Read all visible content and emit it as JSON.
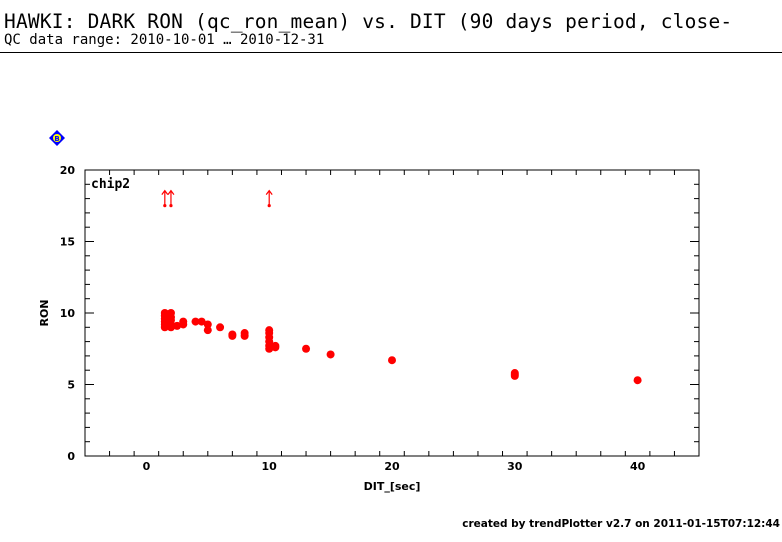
{
  "header": {
    "title": "HAWKI: DARK RON (qc_ron_mean) vs. DIT (90 days period, close-",
    "subtitle": "QC data range: 2010-10-01 … 2010-12-31"
  },
  "footer": {
    "text": "created by trendPlotter v2.7 on 2011-01-15T07:12:44"
  },
  "colors": {
    "data": "#ff0000",
    "marker_blue": "#0000ff",
    "marker_yellow": "#ffff00",
    "axis": "#000000"
  },
  "marker_icon": {
    "name": "blue-diamond-icon",
    "letter": "B"
  },
  "chart_data": {
    "type": "scatter",
    "panel_label": "chip2",
    "xlabel": "DIT_[sec]",
    "ylabel": "RON",
    "xlim": [
      -5,
      45
    ],
    "ylim": [
      0,
      20
    ],
    "xticks": [
      0,
      10,
      20,
      30,
      40
    ],
    "yticks": [
      0,
      5,
      10,
      15,
      20
    ],
    "series": [
      {
        "points": [
          [
            1.5,
            9.0
          ],
          [
            1.5,
            9.2
          ],
          [
            1.5,
            9.4
          ],
          [
            1.5,
            9.6
          ],
          [
            1.5,
            9.8
          ],
          [
            1.5,
            10.0
          ],
          [
            2.0,
            9.0
          ],
          [
            2.0,
            9.2
          ],
          [
            2.0,
            9.5
          ],
          [
            2.0,
            9.7
          ],
          [
            2.0,
            10.0
          ],
          [
            2.5,
            9.1
          ],
          [
            3.0,
            9.2
          ],
          [
            3.0,
            9.4
          ],
          [
            4.0,
            9.4
          ],
          [
            4.5,
            9.4
          ],
          [
            5.0,
            8.8
          ],
          [
            5.0,
            9.2
          ],
          [
            6.0,
            9.0
          ],
          [
            7.0,
            8.4
          ],
          [
            7.0,
            8.5
          ],
          [
            8.0,
            8.4
          ],
          [
            8.0,
            8.6
          ],
          [
            10.0,
            7.5
          ],
          [
            10.0,
            7.7
          ],
          [
            10.0,
            8.0
          ],
          [
            10.0,
            8.3
          ],
          [
            10.0,
            8.6
          ],
          [
            10.0,
            8.8
          ],
          [
            10.5,
            7.6
          ],
          [
            10.5,
            7.7
          ],
          [
            13.0,
            7.5
          ],
          [
            15.0,
            7.1
          ],
          [
            20.0,
            6.7
          ],
          [
            30.0,
            5.6
          ],
          [
            30.0,
            5.7
          ],
          [
            30.0,
            5.8
          ],
          [
            40.0,
            5.3
          ]
        ]
      }
    ],
    "outliers_above": [
      {
        "x": 1.5,
        "y": 18.0
      },
      {
        "x": 2.0,
        "y": 18.0
      },
      {
        "x": 10.0,
        "y": 18.0
      }
    ]
  }
}
